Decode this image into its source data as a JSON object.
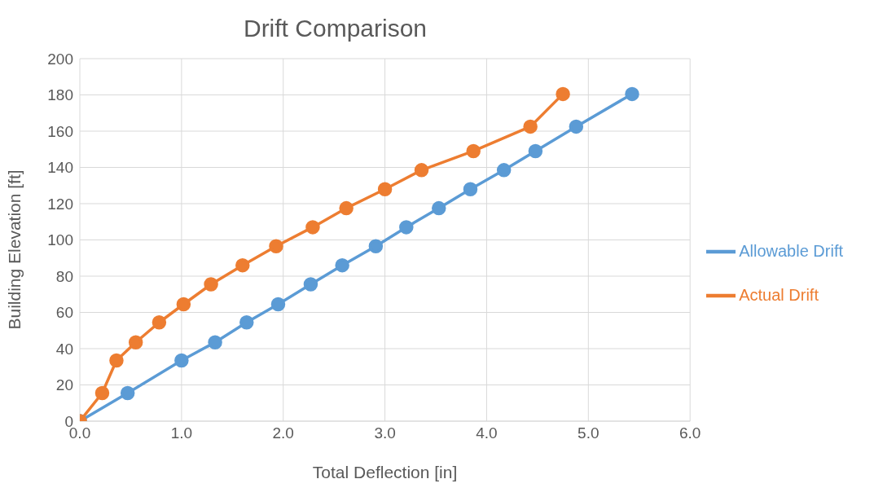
{
  "chart_data": {
    "type": "line",
    "title": "Drift Comparison",
    "xlabel": "Total Deflection [in]",
    "ylabel": "Building Elevation [ft]",
    "series": [
      {
        "name": "Allowable Drift",
        "color": "#5b9bd5",
        "x": [
          0,
          0.47,
          1.0,
          1.33,
          1.64,
          1.95,
          2.27,
          2.58,
          2.91,
          3.21,
          3.53,
          3.84,
          4.17,
          4.48,
          4.88,
          5.43
        ],
        "values": [
          0,
          15.5,
          33.5,
          43.5,
          54.5,
          64.5,
          75.5,
          86,
          96.5,
          107,
          117.5,
          128,
          138.5,
          149,
          162.5,
          180.5
        ]
      },
      {
        "name": "Actual Drift",
        "color": "#ed7d31",
        "x": [
          0,
          0.22,
          0.36,
          0.55,
          0.78,
          1.02,
          1.29,
          1.6,
          1.93,
          2.29,
          2.62,
          3.0,
          3.36,
          3.87,
          4.43,
          4.75
        ],
        "values": [
          0,
          15.5,
          33.5,
          43.5,
          54.5,
          64.5,
          75.5,
          86,
          96.5,
          107,
          117.5,
          128,
          138.5,
          149,
          162.5,
          180.5
        ]
      }
    ],
    "xlim": [
      0,
      6
    ],
    "xticks": [
      {
        "value": 0,
        "label": "0.0"
      },
      {
        "value": 1,
        "label": "1.0"
      },
      {
        "value": 2,
        "label": "2.0"
      },
      {
        "value": 3,
        "label": "3.0"
      },
      {
        "value": 4,
        "label": "4.0"
      },
      {
        "value": 5,
        "label": "5.0"
      },
      {
        "value": 6,
        "label": "6.0"
      }
    ],
    "ylim": [
      0,
      200
    ],
    "yticks": [
      0,
      20,
      40,
      60,
      80,
      100,
      120,
      140,
      160,
      180,
      200
    ],
    "grid": true,
    "legend": "right",
    "marker": "circle",
    "line_style": "solid"
  }
}
